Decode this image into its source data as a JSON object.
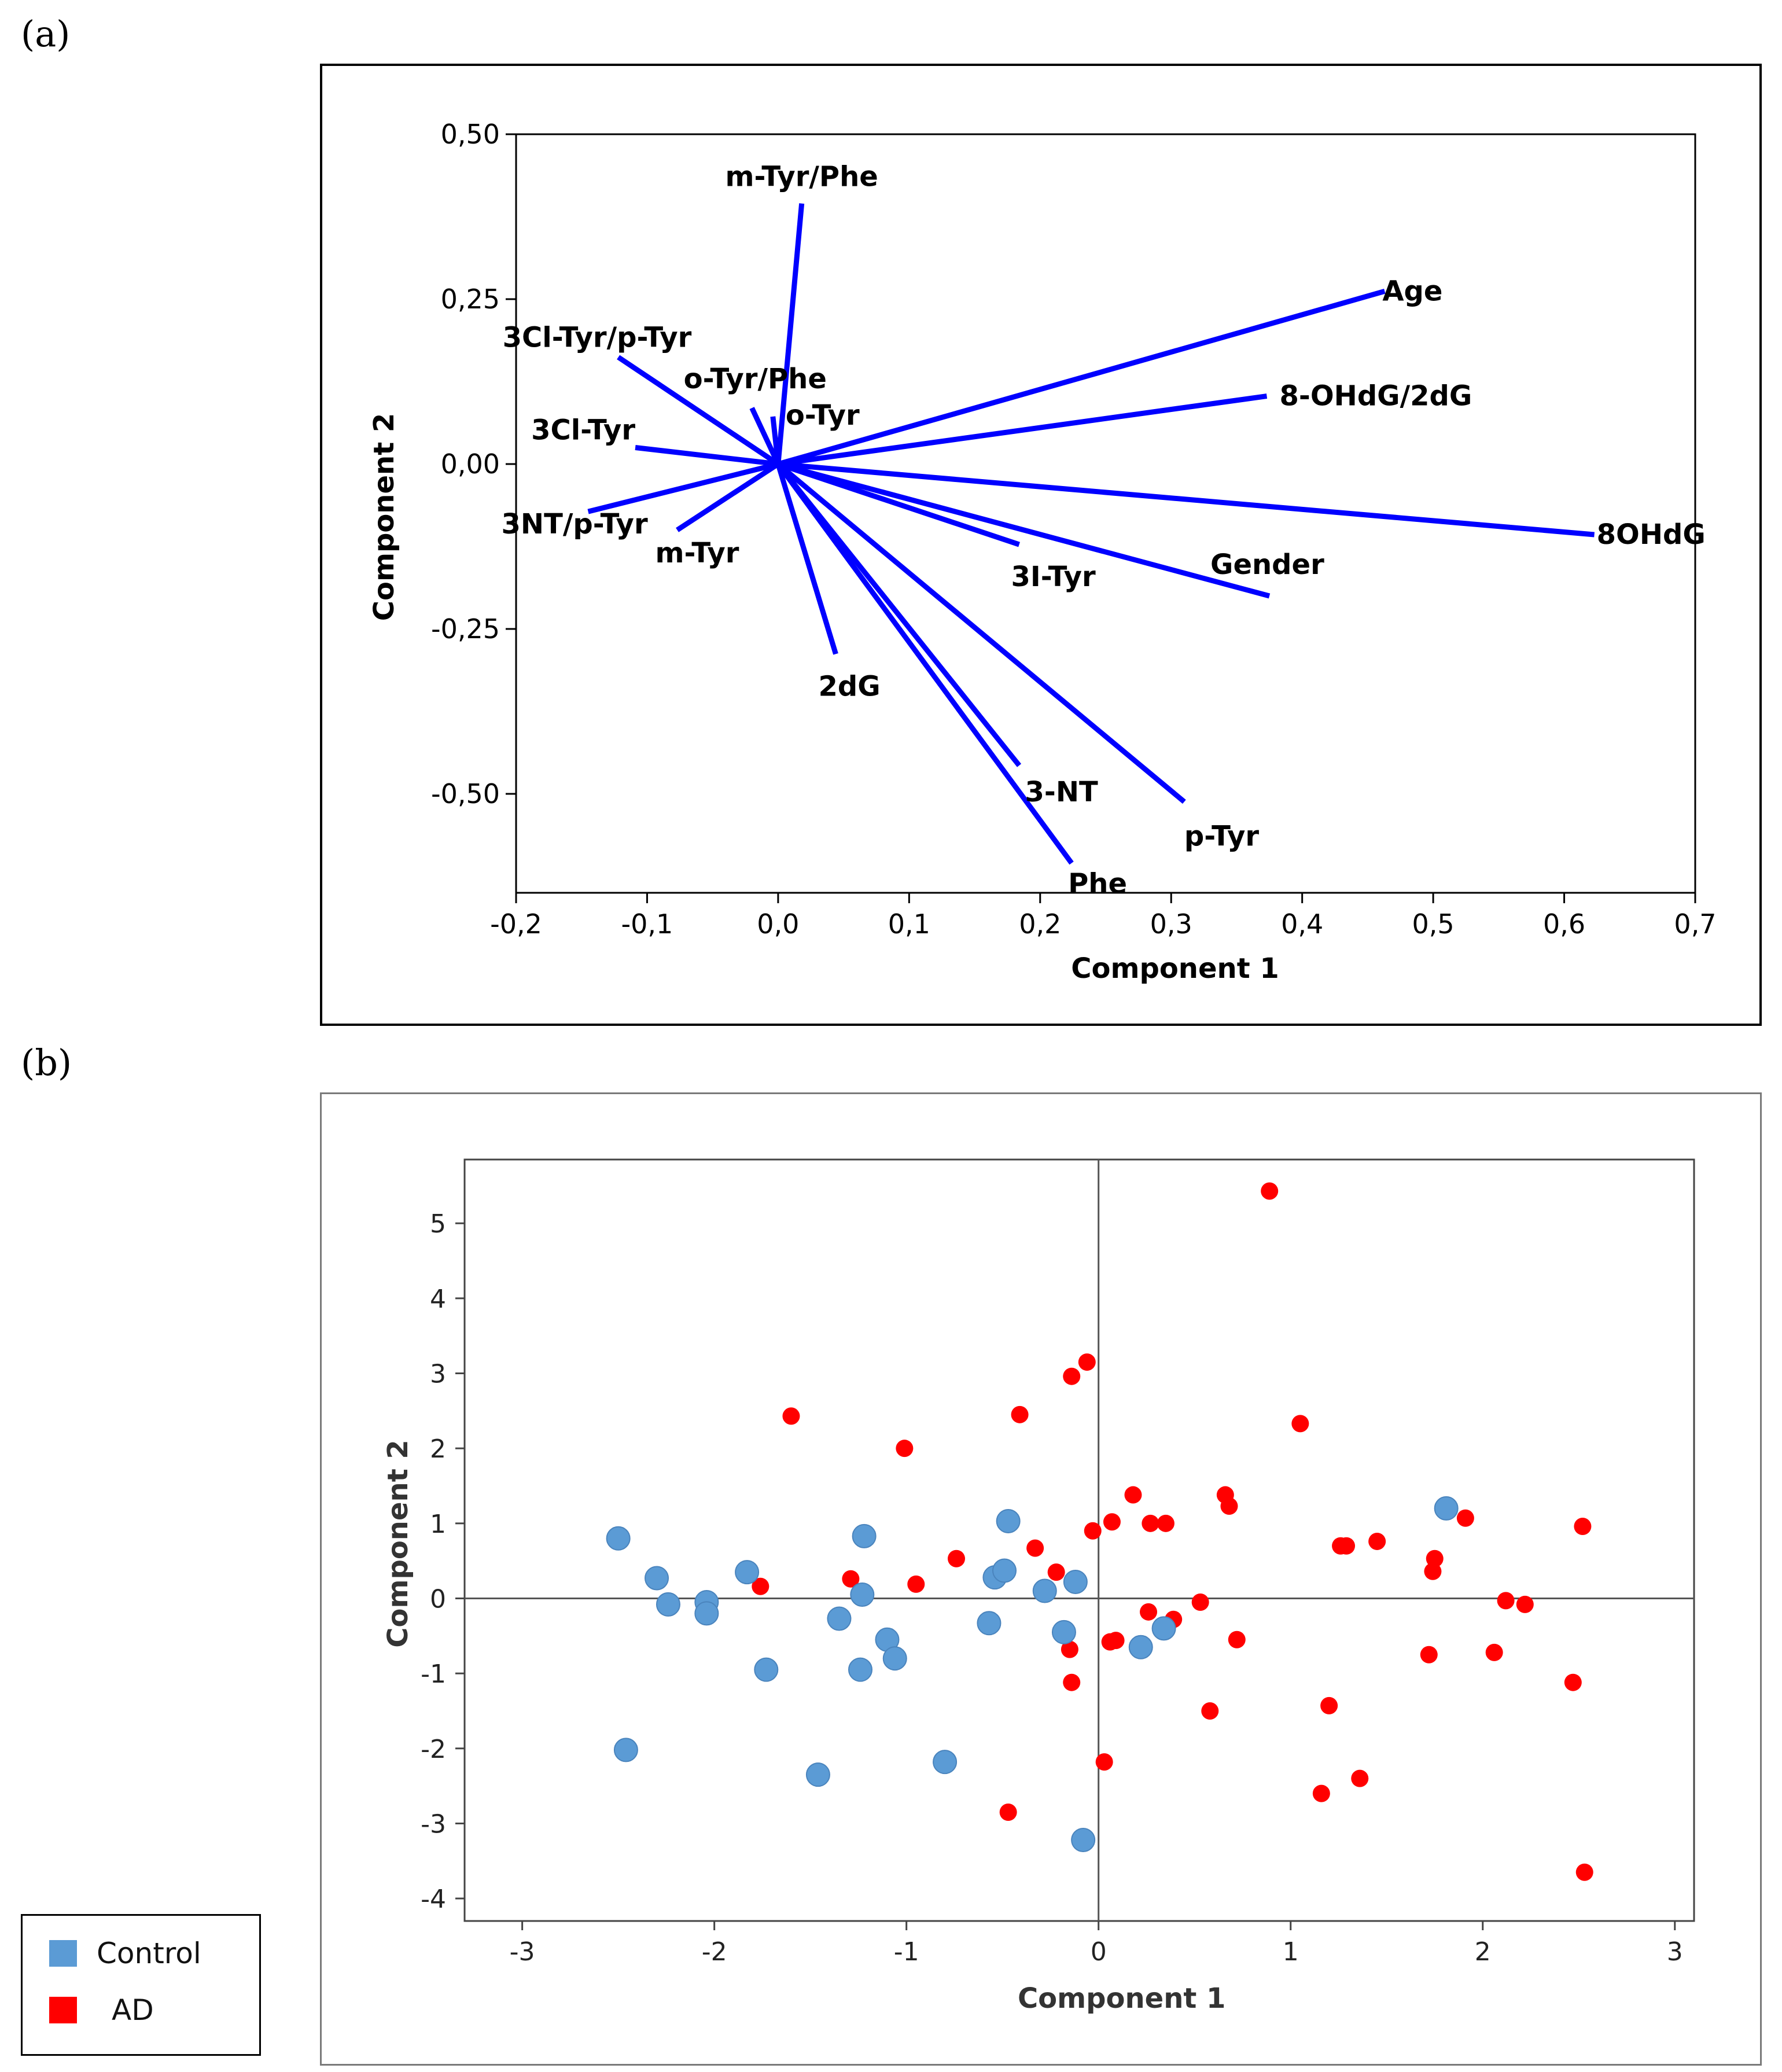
{
  "panels": {
    "a": {
      "label": "(a)"
    },
    "b": {
      "label": "(b)"
    }
  },
  "colors": {
    "loading": "#0000ff",
    "control": "#5b9bd5",
    "ad": "#ff0000"
  },
  "legend": {
    "items": [
      {
        "label": "Control",
        "color": "#5b9bd5"
      },
      {
        "label": "AD",
        "color": "#ff0000"
      }
    ]
  },
  "chart_data": [
    {
      "type": "loading-plot",
      "xlabel": "Component 1",
      "ylabel": "Component 2",
      "xlim": [
        -0.2,
        0.7
      ],
      "ylim": [
        -0.65,
        0.5
      ],
      "xticks": [
        "-0,2",
        "-0,1",
        "0,0",
        "0,1",
        "0,2",
        "0,3",
        "0,4",
        "0,5",
        "0,6",
        "0,7"
      ],
      "xtick_values": [
        -0.2,
        -0.1,
        0.0,
        0.1,
        0.2,
        0.3,
        0.4,
        0.5,
        0.6,
        0.7
      ],
      "yticks": [
        "0,50",
        "0,25",
        "0,00",
        "-0,25",
        "-0,50"
      ],
      "ytick_values": [
        0.5,
        0.25,
        0.0,
        -0.25,
        -0.5
      ],
      "loadings": [
        {
          "name": "m-Tyr/Phe",
          "x": 0.018,
          "y": 0.395
        },
        {
          "name": "Age",
          "x": 0.463,
          "y": 0.262
        },
        {
          "name": "8-OHdG/2dG",
          "x": 0.373,
          "y": 0.103
        },
        {
          "name": "3Cl-Tyr/p-Tyr",
          "x": -0.122,
          "y": 0.162
        },
        {
          "name": "o-Tyr/Phe",
          "x": -0.02,
          "y": 0.085
        },
        {
          "name": "o-Tyr",
          "x": -0.004,
          "y": 0.072
        },
        {
          "name": "3Cl-Tyr",
          "x": -0.109,
          "y": 0.025
        },
        {
          "name": "3NT/p-Tyr",
          "x": -0.145,
          "y": -0.072
        },
        {
          "name": "m-Tyr",
          "x": -0.077,
          "y": -0.1
        },
        {
          "name": "8OHdG",
          "x": 0.623,
          "y": -0.107
        },
        {
          "name": "3I-Tyr",
          "x": 0.184,
          "y": -0.122
        },
        {
          "name": "Gender",
          "x": 0.375,
          "y": -0.2
        },
        {
          "name": "2dG",
          "x": 0.044,
          "y": -0.288
        },
        {
          "name": "3-NT",
          "x": 0.184,
          "y": -0.457
        },
        {
          "name": "p-Tyr",
          "x": 0.31,
          "y": -0.512
        },
        {
          "name": "Phe",
          "x": 0.224,
          "y": -0.605
        }
      ]
    },
    {
      "type": "scatter",
      "xlabel": "Component 1",
      "ylabel": "Component 2",
      "xlim": [
        -3.3,
        3.1
      ],
      "ylim": [
        -4.3,
        5.85
      ],
      "xticks": [
        "-3",
        "-2",
        "-1",
        "0",
        "1",
        "2",
        "3"
      ],
      "xtick_values": [
        -3,
        -2,
        -1,
        0,
        1,
        2,
        3
      ],
      "yticks": [
        "5",
        "4",
        "3",
        "2",
        "1",
        "0",
        "-1",
        "-2",
        "-3",
        "-4"
      ],
      "ytick_values": [
        5,
        4,
        3,
        2,
        1,
        0,
        -1,
        -2,
        -3,
        -4
      ],
      "series": [
        {
          "name": "Control",
          "color": "#5b9bd5",
          "points": [
            [
              -2.5,
              0.8
            ],
            [
              -2.46,
              -2.02
            ],
            [
              -2.3,
              0.27
            ],
            [
              -2.24,
              -0.08
            ],
            [
              -2.04,
              -0.05
            ],
            [
              -2.04,
              -0.2
            ],
            [
              -1.83,
              0.35
            ],
            [
              -1.73,
              -0.95
            ],
            [
              -1.46,
              -2.35
            ],
            [
              -1.35,
              -0.27
            ],
            [
              -1.22,
              0.83
            ],
            [
              -1.23,
              0.05
            ],
            [
              -1.24,
              -0.95
            ],
            [
              -1.1,
              -0.55
            ],
            [
              -1.06,
              -0.8
            ],
            [
              -0.8,
              -2.18
            ],
            [
              -0.57,
              -0.33
            ],
            [
              -0.54,
              0.28
            ],
            [
              -0.49,
              0.37
            ],
            [
              -0.47,
              1.03
            ],
            [
              -0.28,
              0.1
            ],
            [
              -0.18,
              -0.45
            ],
            [
              -0.12,
              0.22
            ],
            [
              -0.08,
              -3.22
            ],
            [
              0.22,
              -0.65
            ],
            [
              0.34,
              -0.4
            ],
            [
              1.81,
              1.2
            ]
          ]
        },
        {
          "name": "AD",
          "color": "#ff0000",
          "points": [
            [
              0.89,
              5.43
            ],
            [
              -0.06,
              3.15
            ],
            [
              -0.14,
              2.96
            ],
            [
              -1.6,
              2.43
            ],
            [
              -0.41,
              2.45
            ],
            [
              1.05,
              2.33
            ],
            [
              -1.01,
              2.0
            ],
            [
              0.18,
              1.38
            ],
            [
              0.66,
              1.38
            ],
            [
              0.68,
              1.23
            ],
            [
              0.07,
              1.02
            ],
            [
              0.27,
              1.0
            ],
            [
              0.35,
              1.0
            ],
            [
              -0.03,
              0.9
            ],
            [
              1.91,
              1.07
            ],
            [
              2.52,
              0.96
            ],
            [
              1.26,
              0.7
            ],
            [
              1.29,
              0.7
            ],
            [
              1.45,
              0.76
            ],
            [
              1.75,
              0.53
            ],
            [
              1.74,
              0.36
            ],
            [
              -0.33,
              0.67
            ],
            [
              -0.74,
              0.53
            ],
            [
              -0.22,
              0.35
            ],
            [
              -1.29,
              0.26
            ],
            [
              -0.95,
              0.19
            ],
            [
              -1.76,
              0.16
            ],
            [
              0.53,
              -0.05
            ],
            [
              2.12,
              -0.03
            ],
            [
              2.22,
              -0.08
            ],
            [
              0.26,
              -0.18
            ],
            [
              0.39,
              -0.28
            ],
            [
              0.06,
              -0.58
            ],
            [
              0.09,
              -0.56
            ],
            [
              0.72,
              -0.55
            ],
            [
              -0.15,
              -0.68
            ],
            [
              2.06,
              -0.72
            ],
            [
              1.72,
              -0.75
            ],
            [
              -0.14,
              -1.12
            ],
            [
              2.47,
              -1.12
            ],
            [
              1.2,
              -1.43
            ],
            [
              0.58,
              -1.5
            ],
            [
              0.03,
              -2.18
            ],
            [
              1.36,
              -2.4
            ],
            [
              1.16,
              -2.6
            ],
            [
              -0.47,
              -2.85
            ],
            [
              2.53,
              -3.65
            ]
          ]
        }
      ]
    }
  ]
}
